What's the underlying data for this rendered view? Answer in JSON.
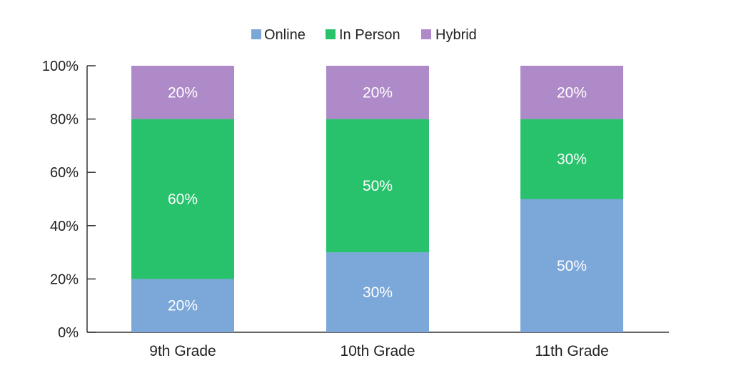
{
  "chart_data": {
    "type": "bar",
    "stacked": true,
    "categories": [
      "9th Grade",
      "10th Grade",
      "11th Grade"
    ],
    "series": [
      {
        "name": "Online",
        "color": "#7ba7d9",
        "values": [
          20,
          30,
          50
        ]
      },
      {
        "name": "In Person",
        "color": "#27c26b",
        "values": [
          60,
          50,
          30
        ]
      },
      {
        "name": "Hybrid",
        "color": "#ae8ac8",
        "values": [
          20,
          20,
          20
        ]
      }
    ],
    "data_labels": [
      [
        "20%",
        "30%",
        "50%"
      ],
      [
        "60%",
        "50%",
        "30%"
      ],
      [
        "20%",
        "20%",
        "20%"
      ]
    ],
    "yticks": [
      "0%",
      "20%",
      "40%",
      "60%",
      "80%",
      "100%"
    ],
    "ylim": [
      0,
      100
    ],
    "legend_position": "top-center",
    "grid": false,
    "title": "",
    "xlabel": "",
    "ylabel": ""
  }
}
